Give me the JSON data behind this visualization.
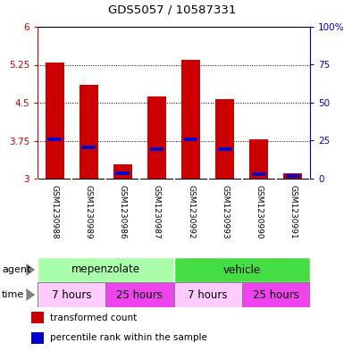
{
  "title": "GDS5057 / 10587331",
  "samples": [
    "GSM1230988",
    "GSM1230989",
    "GSM1230986",
    "GSM1230987",
    "GSM1230992",
    "GSM1230993",
    "GSM1230990",
    "GSM1230991"
  ],
  "transformed_counts": [
    5.3,
    4.85,
    3.28,
    4.62,
    5.35,
    4.57,
    3.78,
    3.1
  ],
  "percentile_ranks": [
    3.77,
    3.62,
    3.1,
    3.58,
    3.77,
    3.58,
    3.08,
    3.06
  ],
  "base_value": 3.0,
  "ylim_left": [
    3.0,
    6.0
  ],
  "ylim_right": [
    0,
    100
  ],
  "yticks_left": [
    3.0,
    3.75,
    4.5,
    5.25,
    6.0
  ],
  "yticks_right": [
    0,
    25,
    50,
    75,
    100
  ],
  "ytick_labels_left": [
    "3",
    "3.75",
    "4.5",
    "5.25",
    "6"
  ],
  "ytick_labels_right": [
    "0",
    "25",
    "50",
    "75",
    "100%"
  ],
  "bar_color": "#CC0000",
  "percentile_color": "#0000CC",
  "bar_width": 0.55,
  "agent_groups": [
    {
      "label": "mepenzolate",
      "start": 0,
      "end": 4,
      "color": "#AAFFAA"
    },
    {
      "label": "vehicle",
      "start": 4,
      "end": 8,
      "color": "#44DD44"
    }
  ],
  "time_groups": [
    {
      "label": "7 hours",
      "start": 0,
      "end": 2,
      "color": "#FFCCFF"
    },
    {
      "label": "25 hours",
      "start": 2,
      "end": 4,
      "color": "#EE44EE"
    },
    {
      "label": "7 hours",
      "start": 4,
      "end": 6,
      "color": "#FFCCFF"
    },
    {
      "label": "25 hours",
      "start": 6,
      "end": 8,
      "color": "#EE44EE"
    }
  ],
  "legend_bar_color": "#CC0000",
  "legend_percentile_color": "#0000CC",
  "tick_label_color_left": "#CC0000",
  "tick_label_color_right": "#0000CC",
  "bg_color_plot": "#FFFFFF",
  "bg_color_samples": "#CCCCCC",
  "grid_color": "black"
}
